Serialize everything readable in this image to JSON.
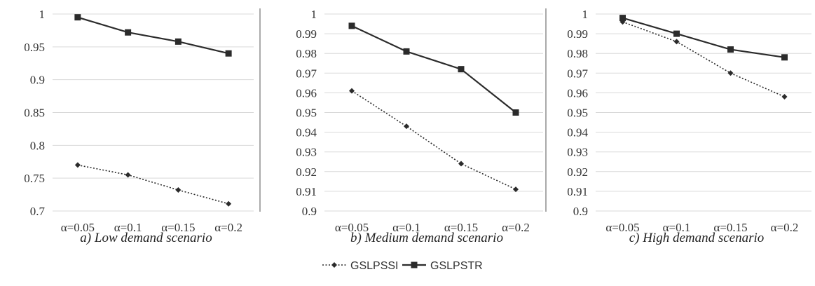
{
  "chart_data": [
    {
      "type": "line",
      "title": "",
      "caption": "a) Low demand scenario",
      "categories": [
        "α=0.05",
        "α=0.1",
        "α=0.15",
        "α=0.2"
      ],
      "ylim": [
        0.7,
        1
      ],
      "yticks": [
        0.7,
        0.75,
        0.8,
        0.85,
        0.9,
        0.95,
        1
      ],
      "ytick_labels": [
        "0.7",
        "0.75",
        "0.8",
        "0.85",
        "0.9",
        "0.95",
        "1"
      ],
      "grid": true,
      "series": [
        {
          "name": "GSLPSSI",
          "values": [
            0.77,
            0.755,
            0.732,
            0.711
          ]
        },
        {
          "name": "GSLPSTR",
          "values": [
            0.995,
            0.972,
            0.958,
            0.94
          ]
        }
      ]
    },
    {
      "type": "line",
      "title": "",
      "caption": "b) Medium demand scenario",
      "categories": [
        "α=0.05",
        "α=0.1",
        "α=0.15",
        "α=0.2"
      ],
      "ylim": [
        0.9,
        1
      ],
      "yticks": [
        0.9,
        0.91,
        0.92,
        0.93,
        0.94,
        0.95,
        0.96,
        0.97,
        0.98,
        0.99,
        1
      ],
      "ytick_labels": [
        "0.9",
        "0.91",
        "0.92",
        "0.93",
        "0.94",
        "0.95",
        "0.96",
        "0.97",
        "0.98",
        "0.99",
        "1"
      ],
      "grid": true,
      "series": [
        {
          "name": "GSLPSSI",
          "values": [
            0.961,
            0.943,
            0.924,
            0.911
          ]
        },
        {
          "name": "GSLPSTR",
          "values": [
            0.994,
            0.981,
            0.972,
            0.95
          ]
        }
      ]
    },
    {
      "type": "line",
      "title": "",
      "caption": "c) High demand scenario",
      "categories": [
        "α=0.05",
        "α=0.1",
        "α=0.15",
        "α=0.2"
      ],
      "ylim": [
        0.9,
        1
      ],
      "yticks": [
        0.9,
        0.91,
        0.92,
        0.93,
        0.94,
        0.95,
        0.96,
        0.97,
        0.98,
        0.99,
        1
      ],
      "ytick_labels": [
        "0.9",
        "0.91",
        "0.92",
        "0.93",
        "0.94",
        "0.95",
        "0.96",
        "0.97",
        "0.98",
        "0.99",
        "1"
      ],
      "grid": true,
      "series": [
        {
          "name": "GSLPSSI",
          "values": [
            0.996,
            0.986,
            0.97,
            0.958
          ]
        },
        {
          "name": "GSLPSTR",
          "values": [
            0.998,
            0.99,
            0.982,
            0.978
          ]
        }
      ]
    }
  ],
  "legend": {
    "placement": "bottom-center",
    "items": [
      {
        "label": "GSLPSSI",
        "style": "dotted",
        "marker": "diamond"
      },
      {
        "label": "GSLPSTR",
        "style": "solid",
        "marker": "square"
      }
    ]
  },
  "colors": {
    "series": "#2b2b2b",
    "grid": "#d9d9d9",
    "separator": "#555555"
  }
}
